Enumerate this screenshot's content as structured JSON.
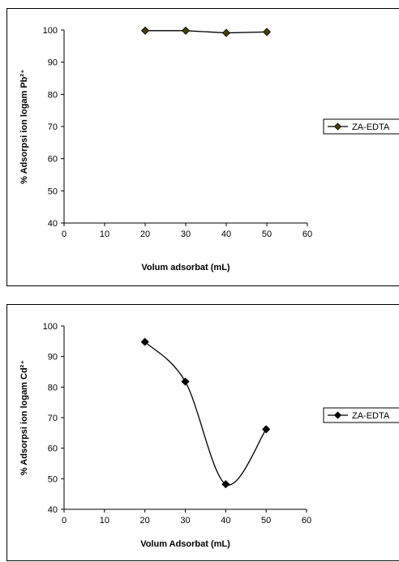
{
  "chart_data": [
    {
      "type": "line",
      "title": "",
      "xlabel": "Volum adsorbat (mL)",
      "ylabel": "% Adsorpsi ion logam Pb²⁺",
      "xlim": [
        0,
        60
      ],
      "ylim": [
        40,
        100
      ],
      "xticks": [
        "0",
        "10",
        "20",
        "30",
        "40",
        "50",
        "60"
      ],
      "yticks": [
        "40",
        "50",
        "60",
        "70",
        "80",
        "90",
        "100"
      ],
      "smooth": false,
      "grid": false,
      "legend_position": "right",
      "series": [
        {
          "name": "ZA-EDTA",
          "color": "#000000",
          "marker_color": "#404000",
          "x": [
            20,
            30,
            40,
            50
          ],
          "y": [
            99.8,
            99.8,
            99.1,
            99.4
          ]
        }
      ]
    },
    {
      "type": "line",
      "title": "",
      "xlabel": "Volum Adsorbat (mL)",
      "ylabel": "% Adsorpsi ion logam Cd²⁺",
      "xlim": [
        0,
        60
      ],
      "ylim": [
        40,
        100
      ],
      "xticks": [
        "0",
        "10",
        "20",
        "30",
        "40",
        "50",
        "60"
      ],
      "yticks": [
        "40",
        "50",
        "60",
        "70",
        "80",
        "90",
        "100"
      ],
      "smooth": true,
      "grid": false,
      "legend_position": "right",
      "series": [
        {
          "name": "ZA-EDTA",
          "color": "#000000",
          "marker_color": "#000000",
          "x": [
            20,
            30,
            40,
            50
          ],
          "y": [
            94.8,
            81.8,
            48.2,
            66.2
          ]
        }
      ]
    }
  ]
}
